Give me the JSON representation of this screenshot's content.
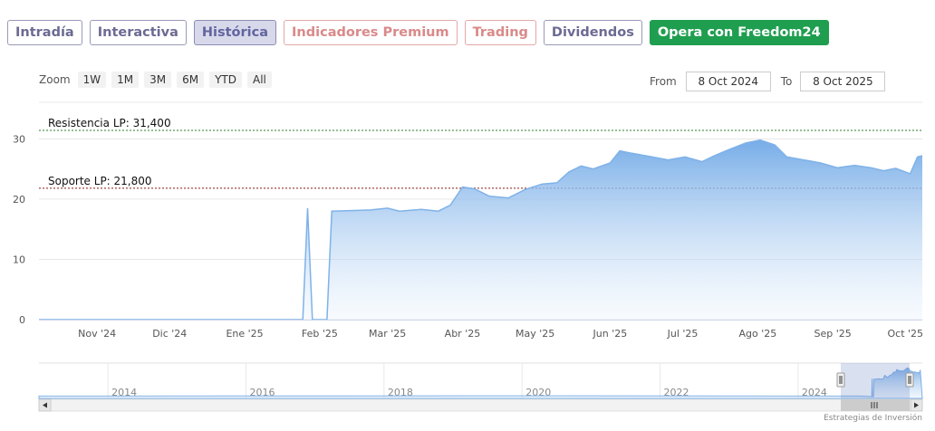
{
  "tabs": [
    {
      "label": "Intradía",
      "state": "default"
    },
    {
      "label": "Interactiva",
      "state": "default"
    },
    {
      "label": "Histórica",
      "state": "active"
    },
    {
      "label": "Indicadores Premium",
      "state": "red"
    },
    {
      "label": "Trading",
      "state": "red"
    },
    {
      "label": "Dividendos",
      "state": "default"
    },
    {
      "label": "Opera con Freedom24",
      "state": "green"
    }
  ],
  "zoom": {
    "label": "Zoom",
    "buttons": [
      "1W",
      "1M",
      "3M",
      "6M",
      "YTD",
      "All"
    ]
  },
  "range": {
    "from_label": "From",
    "from_value": "8 Oct 2024",
    "to_label": "To",
    "to_value": "8 Oct 2025"
  },
  "colors": {
    "tab_border": "#9a9ab8",
    "active_tab": "#d7d8ea",
    "premium": "#d98a8a",
    "green_button": "#1f9e4f",
    "series": "#7fb2e8",
    "resistance_line": "#2e7d32",
    "support_line": "#8b1a1a"
  },
  "chart_data": {
    "type": "area",
    "ylim": [
      0,
      30.5
    ],
    "y_ticks": [
      0,
      10,
      20,
      30
    ],
    "x_ticks": [
      "Nov '24",
      "Dic '24",
      "Ene '25",
      "Feb '25",
      "Mar '25",
      "Abr '25",
      "May '25",
      "Jun '25",
      "Jul '25",
      "Ago '25",
      "Sep '25",
      "Oct '25"
    ],
    "x_range": [
      "2024-10-08",
      "2025-10-08"
    ],
    "points": [
      [
        "2024-10-08",
        0
      ],
      [
        "2025-01-25",
        0
      ],
      [
        "2025-01-27",
        18.5
      ],
      [
        "2025-01-29",
        0
      ],
      [
        "2025-02-04",
        0
      ],
      [
        "2025-02-06",
        18
      ],
      [
        "2025-02-15",
        18.1
      ],
      [
        "2025-02-22",
        18.2
      ],
      [
        "2025-03-01",
        18.5
      ],
      [
        "2025-03-06",
        18.0
      ],
      [
        "2025-03-15",
        18.3
      ],
      [
        "2025-03-22",
        18.0
      ],
      [
        "2025-03-27",
        19.0
      ],
      [
        "2025-04-01",
        22.0
      ],
      [
        "2025-04-06",
        21.7
      ],
      [
        "2025-04-12",
        20.5
      ],
      [
        "2025-04-20",
        20.2
      ],
      [
        "2025-04-27",
        21.6
      ],
      [
        "2025-05-04",
        22.5
      ],
      [
        "2025-05-10",
        22.7
      ],
      [
        "2025-05-15",
        24.5
      ],
      [
        "2025-05-20",
        25.5
      ],
      [
        "2025-05-25",
        25.0
      ],
      [
        "2025-06-01",
        26.0
      ],
      [
        "2025-06-05",
        28.0
      ],
      [
        "2025-06-10",
        27.6
      ],
      [
        "2025-06-17",
        27.1
      ],
      [
        "2025-06-25",
        26.5
      ],
      [
        "2025-07-02",
        27.0
      ],
      [
        "2025-07-09",
        26.2
      ],
      [
        "2025-07-14",
        27.2
      ],
      [
        "2025-07-20",
        28.2
      ],
      [
        "2025-07-27",
        29.3
      ],
      [
        "2025-08-02",
        29.8
      ],
      [
        "2025-08-08",
        29.0
      ],
      [
        "2025-08-13",
        27.0
      ],
      [
        "2025-08-20",
        26.5
      ],
      [
        "2025-08-27",
        26.0
      ],
      [
        "2025-09-03",
        25.2
      ],
      [
        "2025-09-10",
        25.6
      ],
      [
        "2025-09-17",
        25.2
      ],
      [
        "2025-09-22",
        24.7
      ],
      [
        "2025-09-27",
        25.1
      ],
      [
        "2025-10-03",
        24.2
      ],
      [
        "2025-10-06",
        27.0
      ],
      [
        "2025-10-08",
        27.2
      ]
    ],
    "plot_lines": [
      {
        "label": "Resistencia LP: 31,400",
        "value": 31.4
      },
      {
        "label": "Soporte LP: 21,800",
        "value": 21.8
      }
    ],
    "navigator": {
      "x_ticks": [
        "2014",
        "2016",
        "2018",
        "2020",
        "2022",
        "2024"
      ],
      "x_range": [
        2013.0,
        2025.8
      ]
    },
    "credit": "Estrategias de Inversión"
  }
}
